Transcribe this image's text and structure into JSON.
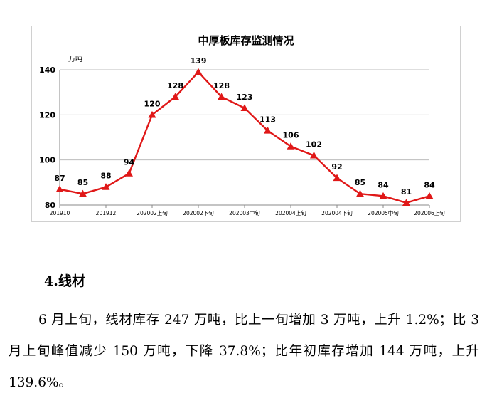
{
  "chart_data": {
    "type": "line",
    "title": "中厚板库存监测情况",
    "unit_label": "万吨",
    "xlabel": "",
    "ylabel": "",
    "ylim": [
      80,
      140
    ],
    "yticks": [
      80,
      100,
      120,
      140
    ],
    "grid": true,
    "legend": "none",
    "line_color": "#e01818",
    "x_tick_labels": [
      {
        "index": 0,
        "label": "201910"
      },
      {
        "index": 2,
        "label": "201912"
      },
      {
        "index": 4,
        "label": "202002上旬"
      },
      {
        "index": 6,
        "label": "202002下旬"
      },
      {
        "index": 8,
        "label": "202003中旬"
      },
      {
        "index": 10,
        "label": "202004上旬"
      },
      {
        "index": 12,
        "label": "202004下旬"
      },
      {
        "index": 14,
        "label": "202005中旬"
      },
      {
        "index": 16,
        "label": "202006上旬"
      }
    ],
    "values": [
      87,
      85,
      88,
      94,
      120,
      128,
      139,
      128,
      123,
      113,
      106,
      102,
      92,
      85,
      84,
      81,
      84
    ]
  },
  "text": {
    "section_heading": "4.线材",
    "paragraph": "6 月上旬，线材库存 247 万吨，比上一旬增加 3 万吨，上升 1.2%；比 3 月上旬峰值减少 150 万吨，下降 37.8%；比年初库存增加 144 万吨，上升 139.6%。"
  }
}
